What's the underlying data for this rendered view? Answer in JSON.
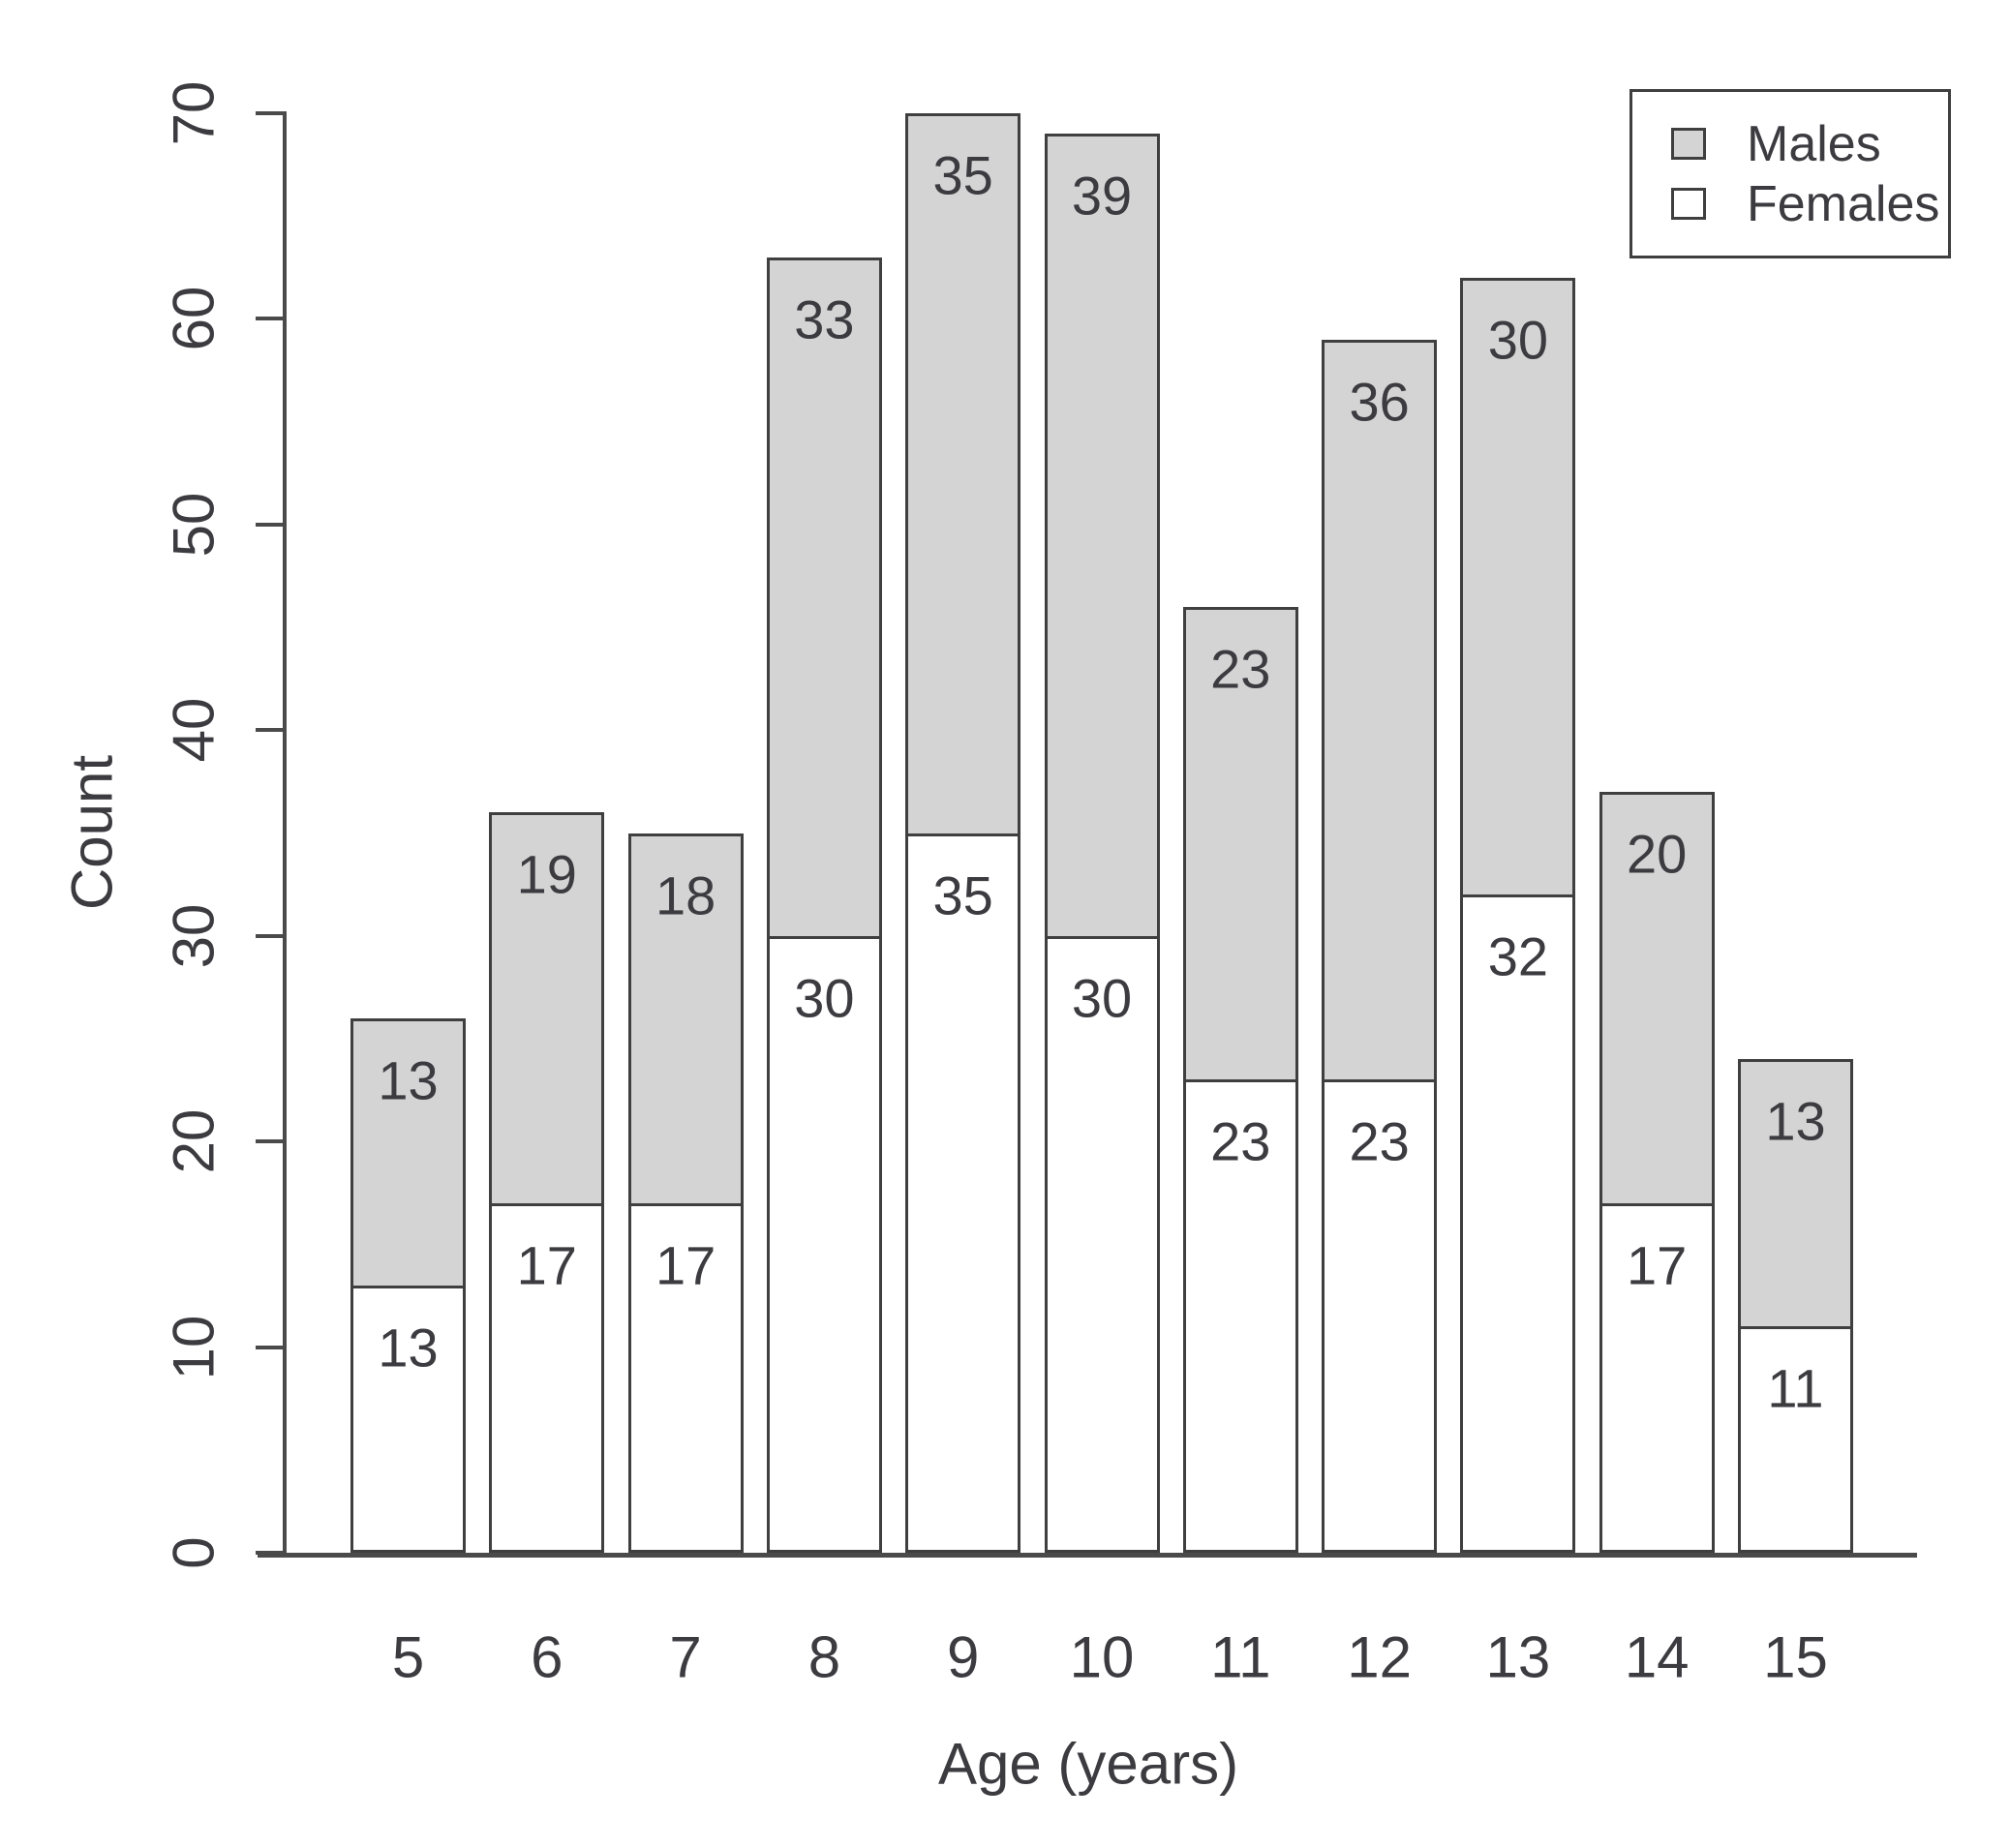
{
  "chart_data": {
    "type": "bar",
    "stacked": true,
    "title": "",
    "xlabel": "Age (years)",
    "ylabel": "Count",
    "categories": [
      "5",
      "6",
      "7",
      "8",
      "9",
      "10",
      "11",
      "12",
      "13",
      "14",
      "15"
    ],
    "series": [
      {
        "name": "Females",
        "color": "#ffffff",
        "values": [
          13,
          17,
          17,
          30,
          35,
          30,
          23,
          23,
          32,
          17,
          11
        ]
      },
      {
        "name": "Males",
        "color": "#d4d4d4",
        "values": [
          13,
          19,
          18,
          33,
          35,
          39,
          23,
          36,
          30,
          20,
          13
        ]
      }
    ],
    "stack_totals": [
      26,
      36,
      35,
      63,
      70,
      69,
      46,
      59,
      62,
      37,
      24
    ],
    "segment_labels_shown": true,
    "ylim": [
      0,
      70
    ],
    "yticks": [
      0,
      10,
      20,
      30,
      40,
      50,
      60,
      70
    ],
    "grid": "off",
    "legend_position": "top-right",
    "bar_fill_males": "#d4d4d4",
    "bar_fill_females": "#ffffff",
    "bar_border_color": "#3f3f3f",
    "axis_color": "#4a4a4a",
    "text_color": "#3b3b40"
  },
  "legend": {
    "items": [
      {
        "label": "Males",
        "series": "Males"
      },
      {
        "label": "Females",
        "series": "Females"
      }
    ]
  }
}
